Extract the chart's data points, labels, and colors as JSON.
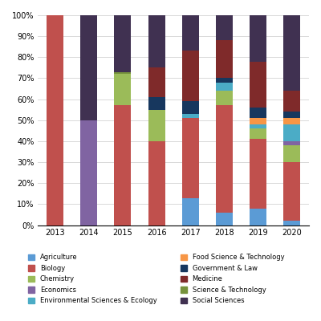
{
  "years": [
    "2013",
    "2014",
    "2015",
    "2016",
    "2017",
    "2018",
    "2019",
    "2020"
  ],
  "categories": [
    "Agriculture",
    "Biology",
    "Chemistry",
    "Economics",
    "Environmental Sciences & Ecology",
    "Food Science & Technology",
    "Government & Law",
    "Medicine",
    "Science & Technology",
    "Social Sciences"
  ],
  "colors": {
    "Agriculture": "#5b9bd5",
    "Biology": "#c0504d",
    "Chemistry": "#9bbb59",
    "Economics": "#8064a2",
    "Environmental Sciences & Ecology": "#4bacc6",
    "Food Science & Technology": "#f79646",
    "Government & Law": "#17375e",
    "Medicine": "#7f2a2a",
    "Science & Technology": "#76923c",
    "Social Sciences": "#403151"
  },
  "data": {
    "Agriculture": [
      0,
      0,
      0,
      0,
      13,
      6,
      8,
      2
    ],
    "Biology": [
      100,
      0,
      57,
      40,
      38,
      51,
      33,
      28
    ],
    "Chemistry": [
      0,
      0,
      15,
      15,
      0,
      7,
      5,
      8
    ],
    "Economics": [
      0,
      50,
      0,
      0,
      0,
      0,
      0,
      2
    ],
    "Environmental Sciences & Ecology": [
      0,
      0,
      0,
      0,
      2,
      4,
      2,
      8
    ],
    "Food Science & Technology": [
      0,
      0,
      0,
      0,
      0,
      0,
      3,
      3
    ],
    "Government & Law": [
      0,
      0,
      0,
      6,
      6,
      2,
      5,
      3
    ],
    "Medicine": [
      0,
      0,
      0,
      14,
      24,
      18,
      22,
      10
    ],
    "Science & Technology": [
      0,
      0,
      1,
      0,
      0,
      0,
      0,
      0
    ],
    "Social Sciences": [
      0,
      50,
      27,
      25,
      17,
      12,
      22,
      36
    ]
  },
  "legend_order": [
    [
      "Agriculture",
      "Biology"
    ],
    [
      "Chemistry",
      "Economics"
    ],
    [
      "Environmental Sciences & Ecology",
      "Food Science & Technology"
    ],
    [
      "Government & Law",
      "Medicine"
    ],
    [
      "Science & Technology",
      "Social Sciences"
    ]
  ],
  "figsize": [
    4.0,
    4.0
  ],
  "dpi": 100
}
